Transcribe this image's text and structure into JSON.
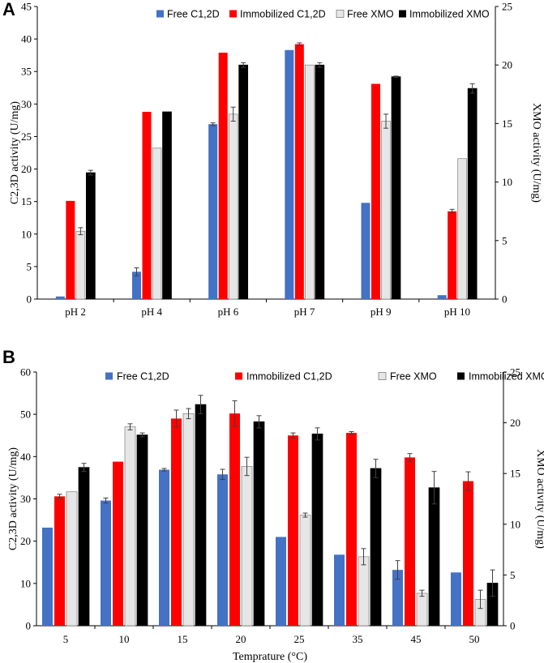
{
  "chart_data": [
    {
      "panel": "A",
      "type": "bar",
      "categories": [
        "pH 2",
        "pH 4",
        "pH 6",
        "pH 7",
        "pH 9",
        "pH 10"
      ],
      "left_axis": {
        "label": "C2,3D  activity (U/mg)",
        "ylim": [
          0,
          45
        ],
        "ticks": [
          0,
          5,
          10,
          15,
          20,
          25,
          30,
          35,
          40,
          45
        ]
      },
      "right_axis": {
        "label": "XMO activity (U/mg)",
        "ylim": [
          0,
          25
        ],
        "ticks": [
          0,
          5,
          10,
          15,
          20,
          25
        ]
      },
      "legend_position": "top-right",
      "series": [
        {
          "name": "Free C1,2D",
          "axis": "left",
          "color": "#4472C4",
          "values": [
            0.4,
            4.2,
            26.9,
            38.3,
            14.8,
            0.6
          ],
          "errors": [
            0,
            0.6,
            0.2,
            0,
            0,
            0
          ]
        },
        {
          "name": "Immobilized C1,2D",
          "axis": "left",
          "color": "#FF0000",
          "values": [
            15.1,
            28.8,
            37.9,
            39.2,
            33.1,
            13.5
          ],
          "errors": [
            0,
            0,
            0,
            0.2,
            0,
            0.3
          ]
        },
        {
          "name": "Free XMO",
          "axis": "right",
          "color": "#E7E6E6",
          "values": [
            5.8,
            12.9,
            15.8,
            20.0,
            15.2,
            12.0
          ],
          "errors": [
            0.3,
            0,
            0.6,
            0,
            0.6,
            0
          ]
        },
        {
          "name": "Immobilized XMO",
          "axis": "right",
          "color": "#000000",
          "values": [
            10.8,
            16.0,
            20.0,
            20.0,
            19.0,
            18.0
          ],
          "errors": [
            0.2,
            0,
            0.2,
            0.2,
            0.05,
            0.4
          ]
        }
      ]
    },
    {
      "panel": "B",
      "type": "bar",
      "categories": [
        "5",
        "10",
        "15",
        "20",
        "25",
        "35",
        "45",
        "50"
      ],
      "xlabel": "Temprature (°C)",
      "left_axis": {
        "label": "C2,3D activity (U/mg)",
        "ylim": [
          0,
          60
        ],
        "ticks": [
          0,
          10,
          20,
          30,
          40,
          50,
          60
        ]
      },
      "right_axis": {
        "label": "XMO activity (U/mg)",
        "ylim": [
          0,
          25
        ],
        "ticks": [
          0,
          5,
          10,
          15,
          20,
          25
        ]
      },
      "legend_position": "top",
      "series": [
        {
          "name": "Free C1,2D",
          "axis": "left",
          "color": "#4472C4",
          "values": [
            23.2,
            29.6,
            36.9,
            35.8,
            21.0,
            16.8,
            13.2,
            12.6
          ],
          "errors": [
            0,
            0.6,
            0.3,
            1.2,
            0,
            0,
            2.2,
            0
          ]
        },
        {
          "name": "Immobilized C1,2D",
          "axis": "left",
          "color": "#FF0000",
          "values": [
            30.6,
            38.8,
            49.0,
            50.2,
            45.0,
            45.6,
            39.8,
            34.2
          ],
          "errors": [
            0.5,
            0,
            2.0,
            3.0,
            0.6,
            0.3,
            0.9,
            2.2
          ]
        },
        {
          "name": "Free XMO",
          "axis": "right",
          "color": "#E7E6E6",
          "values": [
            13.2,
            19.6,
            20.9,
            15.7,
            10.9,
            6.8,
            3.2,
            2.6
          ],
          "errors": [
            0,
            0.3,
            0.5,
            0.9,
            0.2,
            0.8,
            0.3,
            0.9
          ]
        },
        {
          "name": "Immobilized XMO",
          "axis": "right",
          "color": "#000000",
          "values": [
            15.6,
            18.8,
            21.8,
            20.1,
            18.9,
            15.5,
            13.6,
            4.2
          ],
          "errors": [
            0.4,
            0.2,
            0.9,
            0.6,
            0.6,
            0.9,
            1.6,
            1.3
          ]
        }
      ]
    }
  ]
}
